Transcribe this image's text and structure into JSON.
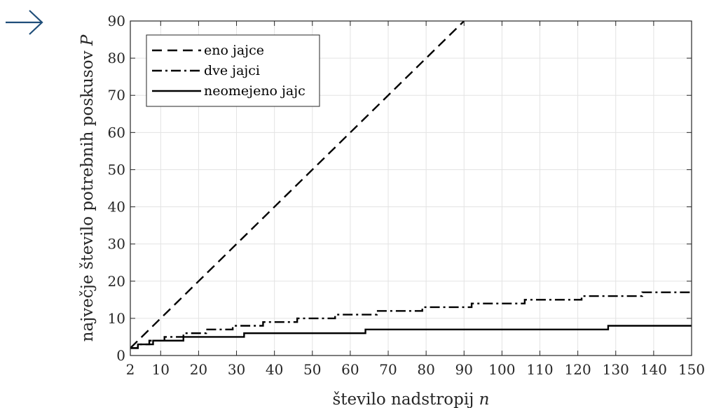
{
  "nav": {
    "arrow_icon": "right-arrow-icon",
    "arrow_color": "#1f4e79"
  },
  "chart_data": {
    "type": "line",
    "xlabel": "število nadstropij ",
    "xlabel_var": "n",
    "ylabel": "največje število potrebnih poskusov ",
    "ylabel_var": "P",
    "xlim": [
      2,
      150
    ],
    "ylim": [
      0,
      90
    ],
    "xticks": [
      2,
      10,
      20,
      30,
      40,
      50,
      60,
      70,
      80,
      90,
      100,
      110,
      120,
      130,
      140,
      150
    ],
    "yticks": [
      0,
      10,
      20,
      30,
      40,
      50,
      60,
      70,
      80,
      90
    ],
    "grid": true,
    "legend_position": "top-left",
    "series": [
      {
        "name": "eno jajce",
        "style": "dashed",
        "color": "#000000",
        "x": [
          2,
          90
        ],
        "y": [
          2,
          90
        ]
      },
      {
        "name": "dve jajci",
        "style": "dashdot",
        "color": "#000000",
        "x": [
          2,
          3,
          4,
          7,
          11,
          16,
          22,
          29,
          37,
          46,
          56,
          67,
          79,
          92,
          106,
          121,
          137,
          150
        ],
        "y": [
          2,
          2,
          3,
          4,
          5,
          6,
          7,
          8,
          9,
          10,
          11,
          12,
          13,
          14,
          15,
          16,
          17,
          17
        ]
      },
      {
        "name": "neomejeno jajc",
        "style": "solid",
        "color": "#000000",
        "x": [
          2,
          4,
          8,
          16,
          32,
          64,
          128,
          150
        ],
        "y": [
          2,
          3,
          4,
          5,
          6,
          7,
          8,
          8
        ]
      }
    ]
  }
}
